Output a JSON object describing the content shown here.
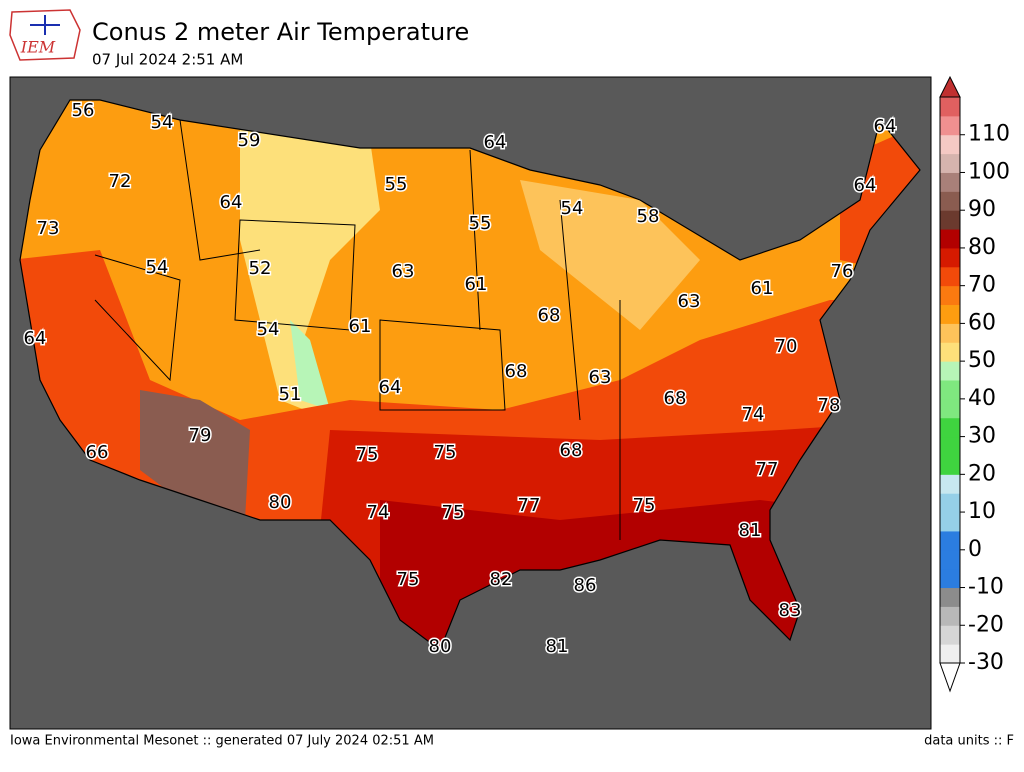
{
  "header": {
    "logo": "IEM",
    "title": "Conus 2 meter Air Temperature",
    "subtitle": "07 Jul 2024 2:51 AM"
  },
  "map": {
    "labels": [
      56,
      54,
      59,
      64,
      64,
      72,
      55,
      64,
      64,
      54,
      58,
      73,
      55,
      52,
      54,
      63,
      61,
      76,
      61,
      63,
      68,
      64,
      54,
      61,
      70,
      68,
      63,
      64,
      51,
      68,
      74,
      78,
      79,
      66,
      75,
      75,
      68,
      77,
      80,
      74,
      75,
      77,
      75,
      81,
      75,
      82,
      86,
      83,
      80,
      81
    ]
  },
  "colorbar": {
    "lim": [
      -30,
      120
    ],
    "ticks": [
      -30,
      -20,
      -10,
      0,
      10,
      20,
      30,
      40,
      50,
      60,
      70,
      80,
      90,
      100,
      110
    ],
    "colors": [
      "#efefef",
      "#d6d6d6",
      "#b8b8b8",
      "#8c8c8c",
      "#2b7de0",
      "#2b7de0",
      "#2b7de0",
      "#95d0e8",
      "#95d0e8",
      "#c7e8f0",
      "#3fd43f",
      "#3fd43f",
      "#3fd43f",
      "#7fe87f",
      "#7fe87f",
      "#b7f5b7",
      "#fde07a",
      "#fdc35a",
      "#fd9d10",
      "#fb7a10",
      "#f24a0a",
      "#d61a00",
      "#b20000",
      "#6b3a2e",
      "#8a5c50",
      "#a98079",
      "#d6b4ae",
      "#f5c9c4",
      "#f09090",
      "#e06060"
    ]
  },
  "footer": {
    "left": "Iowa Environmental Mesonet :: generated 07 July 2024 02:51 AM",
    "right": "data units :: F"
  }
}
